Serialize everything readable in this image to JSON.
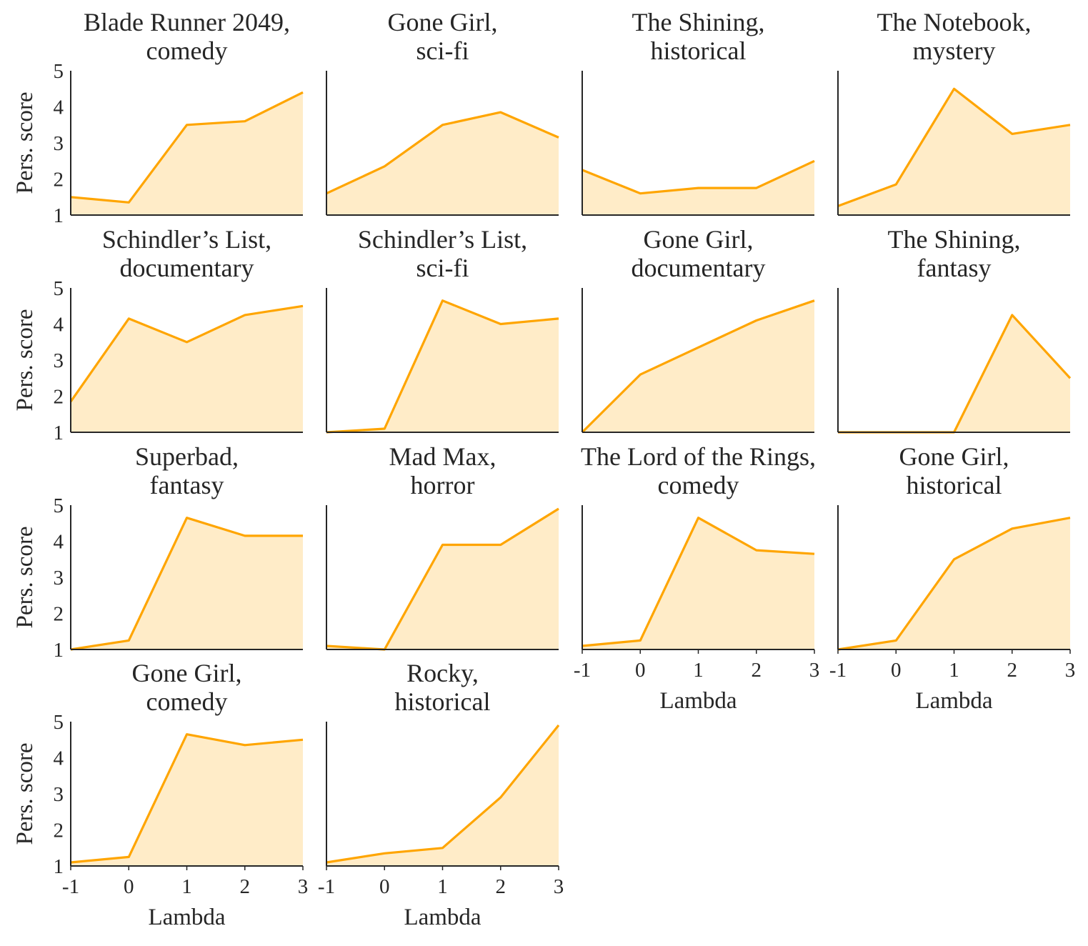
{
  "chart_data": {
    "type": "area",
    "layout": {
      "rows": 4,
      "cols": 4
    },
    "x": [
      -1,
      0,
      1,
      2,
      3
    ],
    "xlim": [
      -1,
      3
    ],
    "ylim": [
      1,
      5
    ],
    "x_ticks": [
      "-1",
      "0",
      "1",
      "2",
      "3"
    ],
    "y_ticks": [
      "1",
      "2",
      "3",
      "4",
      "5"
    ],
    "xlabel": "Lambda",
    "ylabel": "Pers. score",
    "grid": false,
    "color": "#FFA500",
    "fill_color": "#FFECC8",
    "panels": [
      {
        "title": [
          "Blade Runner 2049,",
          "comedy"
        ],
        "values": [
          1.5,
          1.35,
          3.5,
          3.6,
          4.4
        ]
      },
      {
        "title": [
          "Gone Girl,",
          "sci-fi"
        ],
        "values": [
          1.6,
          2.35,
          3.5,
          3.85,
          3.15
        ]
      },
      {
        "title": [
          "The Shining,",
          "historical"
        ],
        "values": [
          2.25,
          1.6,
          1.75,
          1.75,
          2.5
        ]
      },
      {
        "title": [
          "The Notebook,",
          "mystery"
        ],
        "values": [
          1.25,
          1.85,
          4.5,
          3.25,
          3.5
        ]
      },
      {
        "title": [
          "Schindler’s List,",
          "documentary"
        ],
        "values": [
          1.85,
          4.15,
          3.5,
          4.25,
          4.5
        ]
      },
      {
        "title": [
          "Schindler’s List,",
          "sci-fi"
        ],
        "values": [
          1.0,
          1.1,
          4.65,
          4.0,
          4.15
        ]
      },
      {
        "title": [
          "Gone Girl,",
          "documentary"
        ],
        "values": [
          1.0,
          2.6,
          3.35,
          4.1,
          4.65
        ]
      },
      {
        "title": [
          "The Shining,",
          "fantasy"
        ],
        "values": [
          1.0,
          1.0,
          1.0,
          4.25,
          2.5
        ]
      },
      {
        "title": [
          "Superbad,",
          "fantasy"
        ],
        "values": [
          1.0,
          1.25,
          4.65,
          4.15,
          4.15
        ]
      },
      {
        "title": [
          "Mad Max,",
          "horror"
        ],
        "values": [
          1.1,
          1.0,
          3.9,
          3.9,
          4.9
        ]
      },
      {
        "title": [
          "The Lord of the Rings,",
          "comedy"
        ],
        "values": [
          1.1,
          1.25,
          4.65,
          3.75,
          3.65
        ]
      },
      {
        "title": [
          "Gone Girl,",
          "historical"
        ],
        "values": [
          1.0,
          1.25,
          3.5,
          4.35,
          4.65
        ]
      },
      {
        "title": [
          "Gone Girl,",
          "comedy"
        ],
        "values": [
          1.1,
          1.25,
          4.65,
          4.35,
          4.5
        ]
      },
      {
        "title": [
          "Rocky,",
          "historical"
        ],
        "values": [
          1.1,
          1.35,
          1.5,
          2.9,
          4.9
        ]
      }
    ]
  }
}
